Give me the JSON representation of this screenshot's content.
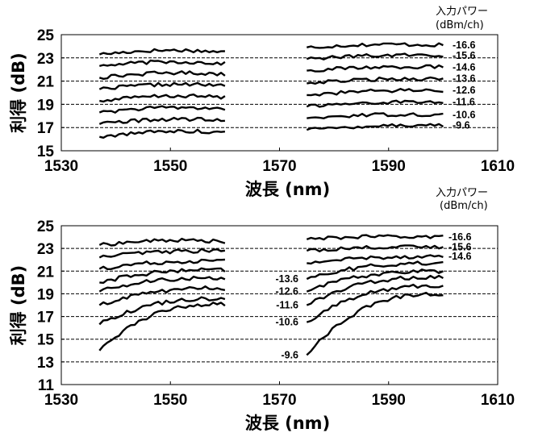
{
  "chart_data": [
    {
      "type": "line",
      "xlabel": "波長 (nm)",
      "ylabel": "利得 (dB)",
      "xlim": [
        1530,
        1610
      ],
      "ylim": [
        15,
        25
      ],
      "xticks": [
        1530,
        1550,
        1570,
        1590,
        1610
      ],
      "yticks": [
        15,
        17,
        19,
        21,
        23,
        25
      ],
      "dashed_gridlines_y": [
        17,
        19,
        21,
        23
      ],
      "legend_title_line1": "入力パワー",
      "legend_title_line2": "(dBm/ch)",
      "series": [
        {
          "name": "-16.6",
          "band1_x": [
            1537,
            1560
          ],
          "band1_y": [
            23.3,
            23.5
          ],
          "band2_x": [
            1575,
            1600
          ],
          "band2_y": [
            23.9,
            24.1
          ]
        },
        {
          "name": "-15.6",
          "band1_x": [
            1537,
            1560
          ],
          "band1_y": [
            22.3,
            22.5
          ],
          "band2_x": [
            1575,
            1600
          ],
          "band2_y": [
            22.9,
            23.2
          ]
        },
        {
          "name": "-14.6",
          "band1_x": [
            1537,
            1560
          ],
          "band1_y": [
            21.3,
            21.6
          ],
          "band2_x": [
            1575,
            1600
          ],
          "band2_y": [
            21.9,
            22.2
          ]
        },
        {
          "name": "-13.6",
          "band1_x": [
            1537,
            1560
          ],
          "band1_y": [
            20.3,
            20.6
          ],
          "band2_x": [
            1575,
            1600
          ],
          "band2_y": [
            20.8,
            21.2
          ]
        },
        {
          "name": "-12.6",
          "band1_x": [
            1537,
            1560
          ],
          "band1_y": [
            19.3,
            19.6
          ],
          "band2_x": [
            1575,
            1600
          ],
          "band2_y": [
            19.8,
            20.2
          ]
        },
        {
          "name": "-11.6",
          "band1_x": [
            1537,
            1560
          ],
          "band1_y": [
            18.3,
            18.6
          ],
          "band2_x": [
            1575,
            1600
          ],
          "band2_y": [
            18.8,
            19.2
          ]
        },
        {
          "name": "-10.6",
          "band1_x": [
            1537,
            1560
          ],
          "band1_y": [
            17.3,
            17.6
          ],
          "band2_x": [
            1575,
            1600
          ],
          "band2_y": [
            17.8,
            18.1
          ]
        },
        {
          "name": "-9.6",
          "band1_x": [
            1537,
            1560
          ],
          "band1_y": [
            16.2,
            16.6
          ],
          "band2_x": [
            1575,
            1600
          ],
          "band2_y": [
            16.8,
            17.2
          ]
        }
      ]
    },
    {
      "type": "line",
      "xlabel": "波長 (nm)",
      "ylabel": "利得 (dB)",
      "xlim": [
        1530,
        1610
      ],
      "ylim": [
        11,
        25
      ],
      "xticks": [
        1530,
        1550,
        1570,
        1590,
        1610
      ],
      "yticks": [
        11,
        13,
        15,
        17,
        19,
        21,
        23,
        25
      ],
      "dashed_gridlines_y": [
        13,
        15,
        17,
        19,
        21,
        23
      ],
      "legend_title_line1": "入力パワー",
      "legend_title_line2": "(dBm/ch)",
      "series": [
        {
          "name": "-16.6",
          "band1_x": [
            1537,
            1560
          ],
          "band1_y": [
            23.3,
            23.6
          ],
          "band2_x": [
            1575,
            1600
          ],
          "band2_y": [
            23.8,
            24.0
          ]
        },
        {
          "name": "-15.6",
          "band1_x": [
            1537,
            1560
          ],
          "band1_y": [
            22.2,
            22.8
          ],
          "band2_x": [
            1575,
            1600
          ],
          "band2_y": [
            22.8,
            23.1
          ]
        },
        {
          "name": "-14.6",
          "band1_x": [
            1537,
            1560
          ],
          "band1_y": [
            21.2,
            21.9
          ],
          "band2_x": [
            1575,
            1600
          ],
          "band2_y": [
            21.7,
            22.3
          ]
        },
        {
          "name": "-13.6",
          "band1_x": [
            1537,
            1560
          ],
          "band1_y": [
            20.0,
            21.1
          ],
          "band2_x": [
            1575,
            1600
          ],
          "band2_y": [
            20.3,
            21.7
          ]
        },
        {
          "name": "-12.6",
          "band1_x": [
            1537,
            1560
          ],
          "band1_y": [
            19.2,
            20.4
          ],
          "band2_x": [
            1575,
            1600
          ],
          "band2_y": [
            19.2,
            21.0
          ]
        },
        {
          "name": "-11.6",
          "band1_x": [
            1537,
            1560
          ],
          "band1_y": [
            18.0,
            19.5
          ],
          "band2_x": [
            1575,
            1600
          ],
          "band2_y": [
            18.0,
            20.5
          ]
        },
        {
          "name": "-10.6",
          "band1_x": [
            1537,
            1560
          ],
          "band1_y": [
            16.3,
            18.6
          ],
          "band2_x": [
            1575,
            1600
          ],
          "band2_y": [
            16.5,
            19.7
          ]
        },
        {
          "name": "-9.6",
          "band1_x": [
            1537,
            1560
          ],
          "band1_y": [
            14.0,
            18.1
          ],
          "band2_x": [
            1575,
            1600
          ],
          "band2_y": [
            13.6,
            19.0
          ]
        }
      ]
    }
  ]
}
